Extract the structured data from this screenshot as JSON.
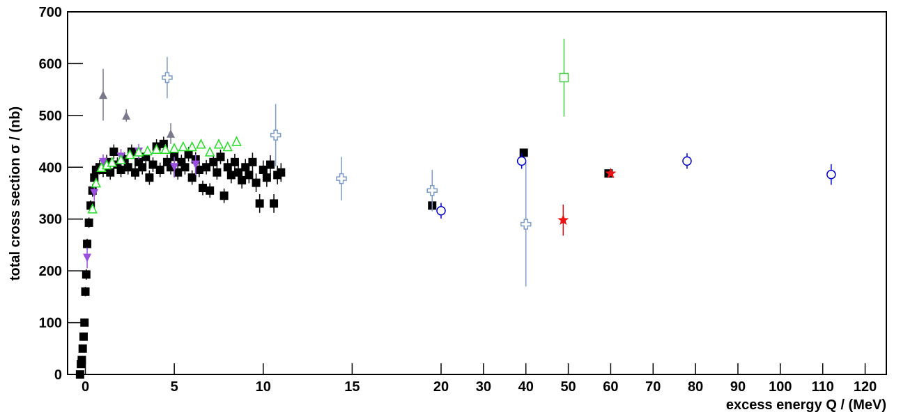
{
  "chart_data": {
    "type": "scatter",
    "xlabel": "excess energy  Q / (MeV)",
    "ylabel": "total cross section σ / (nb)",
    "xlim": [
      -1,
      125
    ],
    "xbreak": 20,
    "ylim": [
      0,
      700
    ],
    "xticks": [
      0,
      5,
      10,
      15,
      20,
      30,
      40,
      50,
      60,
      70,
      80,
      90,
      100,
      110,
      120
    ],
    "yticks": [
      0,
      100,
      200,
      300,
      400,
      500,
      600,
      700
    ],
    "grid": false,
    "series": [
      {
        "marker": "square",
        "color": "#000000",
        "x": [
          -0.3,
          -0.25,
          -0.2,
          -0.15,
          -0.1,
          -0.05,
          0,
          0.05,
          0.1,
          0.2,
          0.3,
          0.4,
          0.5,
          0.6,
          0.8,
          1.0,
          1.2,
          1.4,
          1.6,
          1.8,
          2.0,
          2.2,
          2.4,
          2.6,
          2.8,
          3.0,
          3.2,
          3.4,
          3.6,
          3.8,
          4.0,
          4.2,
          4.4,
          4.6,
          4.8,
          5.0,
          5.2,
          5.4,
          5.6,
          5.8,
          6.0,
          6.2,
          6.4,
          6.6,
          6.8,
          7.0,
          7.2,
          7.4,
          7.6,
          7.8,
          8.0,
          8.2,
          8.4,
          8.6,
          8.8,
          9.0,
          9.2,
          9.4,
          9.6,
          9.8,
          10.0,
          10.2,
          10.4,
          10.6,
          10.8,
          11.0,
          19.5,
          39.5,
          59.5
        ],
        "values": [
          0,
          20,
          28,
          50,
          73,
          100,
          160,
          193,
          252,
          293,
          326,
          355,
          380,
          395,
          400,
          395,
          410,
          390,
          430,
          405,
          395,
          415,
          400,
          430,
          390,
          410,
          400,
          420,
          380,
          405,
          440,
          395,
          445,
          410,
          400,
          420,
          390,
          410,
          400,
          425,
          380,
          415,
          395,
          360,
          400,
          355,
          410,
          390,
          420,
          345,
          400,
          385,
          410,
          390,
          375,
          400,
          385,
          410,
          370,
          330,
          395,
          380,
          405,
          330,
          385,
          390,
          326,
          428,
          388
        ],
        "errors": [
          3,
          4,
          5,
          6,
          7,
          8,
          9,
          10,
          10,
          10,
          10,
          12,
          12,
          12,
          14,
          14,
          14,
          14,
          14,
          14,
          14,
          14,
          14,
          14,
          14,
          14,
          14,
          14,
          14,
          14,
          14,
          14,
          14,
          14,
          14,
          14,
          14,
          14,
          14,
          14,
          14,
          14,
          14,
          14,
          14,
          14,
          14,
          14,
          14,
          14,
          16,
          16,
          16,
          16,
          16,
          16,
          16,
          18,
          18,
          18,
          18,
          18,
          18,
          18,
          18,
          18,
          5,
          5,
          5
        ]
      },
      {
        "marker": "tri-down",
        "color": "#9b4fe0",
        "x": [
          0.1,
          0.5,
          1.0,
          2.0,
          3.0,
          5.0,
          6.2
        ],
        "values": [
          225,
          350,
          410,
          420,
          430,
          400,
          405
        ],
        "errors": [
          20,
          15,
          15,
          15,
          15,
          20,
          20
        ]
      },
      {
        "marker": "tri-up",
        "color": "#7a7a8c",
        "x": [
          1.0,
          2.3,
          4.8
        ],
        "values": [
          540,
          500,
          465
        ],
        "errors": [
          50,
          12,
          20
        ]
      },
      {
        "marker": "open-tri",
        "color": "#22dd22",
        "x": [
          0.4,
          0.6,
          0.9,
          1.2,
          1.5,
          2.0,
          2.5,
          3.0,
          3.5,
          4.0,
          4.5,
          5.0,
          5.5,
          6.0,
          6.5,
          7.0,
          7.5,
          8.0,
          8.5
        ],
        "values": [
          320,
          370,
          400,
          405,
          410,
          415,
          425,
          430,
          432,
          435,
          435,
          437,
          440,
          440,
          445,
          430,
          445,
          440,
          450
        ],
        "errors": [
          8,
          8,
          8,
          8,
          8,
          8,
          8,
          8,
          8,
          8,
          8,
          8,
          8,
          8,
          8,
          8,
          8,
          8,
          8
        ]
      },
      {
        "marker": "cross",
        "color": "#7b9bcb",
        "x": [
          4.6,
          10.7,
          14.4,
          19.5,
          40
        ],
        "values": [
          573,
          462,
          378,
          355,
          290
        ],
        "errors": [
          40,
          60,
          42,
          40,
          120
        ]
      },
      {
        "marker": "circle",
        "color": "#0000cc",
        "x": [
          20,
          39,
          78,
          112
        ],
        "values": [
          316,
          412,
          412,
          386
        ],
        "errors": [
          15,
          15,
          15,
          20
        ]
      },
      {
        "marker": "open-square",
        "color": "#44cc44",
        "x": [
          49
        ],
        "values": [
          573
        ],
        "errors": [
          75
        ]
      },
      {
        "marker": "star",
        "color": "#ee1111",
        "x": [
          48.8,
          60
        ],
        "values": [
          298,
          388
        ],
        "errors": [
          30,
          5
        ]
      }
    ]
  }
}
